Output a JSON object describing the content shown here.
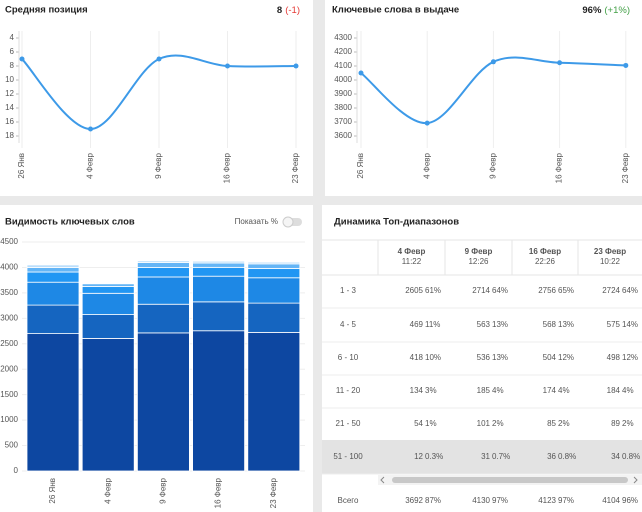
{
  "chart_data": [
    {
      "type": "line",
      "title": "Средняя позиция",
      "headline": "8",
      "change": "(-1)",
      "color": "#3d9ae8",
      "categories": [
        "26 Янв",
        "4 Февр",
        "9 Февр",
        "16 Февр",
        "23 Февр"
      ],
      "values": [
        7,
        17,
        7,
        8,
        8
      ],
      "ylim": [
        19,
        3
      ],
      "yticks": [
        4,
        6,
        8,
        10,
        12,
        14,
        16,
        18
      ]
    },
    {
      "type": "line",
      "title": "Ключевые слова в выдаче",
      "headline": "96%",
      "change": "(+1%)",
      "color": "#3d9ae8",
      "categories": [
        "26 Янв",
        "4 Февр",
        "9 Февр",
        "16 Февр",
        "23 Февр"
      ],
      "values": [
        4050,
        3692,
        4130,
        4123,
        4104
      ],
      "ylim": [
        3550,
        4350
      ],
      "yticks": [
        3600,
        3700,
        3800,
        3900,
        4000,
        4100,
        4200,
        4300
      ]
    },
    {
      "type": "stacked_bar",
      "title": "Видимость ключевых слов",
      "toggle_label": "Показать %",
      "categories": [
        "26 Янв",
        "4 Февр",
        "9 Февр",
        "16 Февр",
        "23 Февр"
      ],
      "series": [
        {
          "color": "#0d47a1",
          "values": [
            2700,
            2605,
            2714,
            2756,
            2724
          ]
        },
        {
          "color": "#1565c0",
          "values": [
            560,
            469,
            563,
            568,
            575
          ]
        },
        {
          "color": "#1e88e5",
          "values": [
            450,
            418,
            536,
            504,
            498
          ]
        },
        {
          "color": "#2196f3",
          "values": [
            200,
            134,
            185,
            174,
            184
          ]
        },
        {
          "color": "#64b5f6",
          "values": [
            90,
            54,
            101,
            85,
            89
          ]
        },
        {
          "color": "#bbdefb",
          "values": [
            50,
            12,
            31,
            36,
            34
          ]
        }
      ],
      "ylim": [
        0,
        4500
      ],
      "yticks": [
        0,
        500,
        1000,
        1500,
        2000,
        2500,
        3000,
        3500,
        4000,
        4500
      ],
      "grid": true
    }
  ],
  "table": {
    "title": "Динамика Топ-диапазонов",
    "columns": [
      {
        "date": "4 Февр",
        "time": "11:22"
      },
      {
        "date": "9 Февр",
        "time": "12:26"
      },
      {
        "date": "16 Февр",
        "time": "22:26"
      },
      {
        "date": "23 Февр",
        "time": "10:22"
      }
    ],
    "rows": [
      {
        "label": "1 - 3",
        "cells": [
          {
            "value": 2605,
            "share": "61%"
          },
          {
            "value": 2714,
            "share": "64%"
          },
          {
            "value": 2756,
            "share": "65%"
          },
          {
            "value": 2724,
            "share": "64%"
          }
        ]
      },
      {
        "label": "4 - 5",
        "cells": [
          {
            "value": 469,
            "share": "11%"
          },
          {
            "value": 563,
            "share": "13%"
          },
          {
            "value": 568,
            "share": "13%"
          },
          {
            "value": 575,
            "share": "14%"
          }
        ]
      },
      {
        "label": "6 - 10",
        "cells": [
          {
            "value": 418,
            "share": "10%"
          },
          {
            "value": 536,
            "share": "13%"
          },
          {
            "value": 504,
            "share": "12%"
          },
          {
            "value": 498,
            "share": "12%"
          }
        ]
      },
      {
        "label": "11 - 20",
        "cells": [
          {
            "value": 134,
            "share": "3%"
          },
          {
            "value": 185,
            "share": "4%"
          },
          {
            "value": 174,
            "share": "4%"
          },
          {
            "value": 184,
            "share": "4%"
          }
        ]
      },
      {
        "label": "21 - 50",
        "cells": [
          {
            "value": 54,
            "share": "1%"
          },
          {
            "value": 101,
            "share": "2%"
          },
          {
            "value": 85,
            "share": "2%"
          },
          {
            "value": 89,
            "share": "2%"
          }
        ]
      },
      {
        "label": "51 - 100",
        "cells": [
          {
            "value": 12,
            "share": "0.3%"
          },
          {
            "value": 31,
            "share": "0.7%"
          },
          {
            "value": 36,
            "share": "0.8%"
          },
          {
            "value": 34,
            "share": "0.8%"
          }
        ]
      },
      {
        "label": "Всего",
        "cells": [
          {
            "value": 3692,
            "share": "87%"
          },
          {
            "value": 4130,
            "share": "97%"
          },
          {
            "value": 4123,
            "share": "97%"
          },
          {
            "value": 4104,
            "share": "96%"
          }
        ]
      }
    ]
  }
}
